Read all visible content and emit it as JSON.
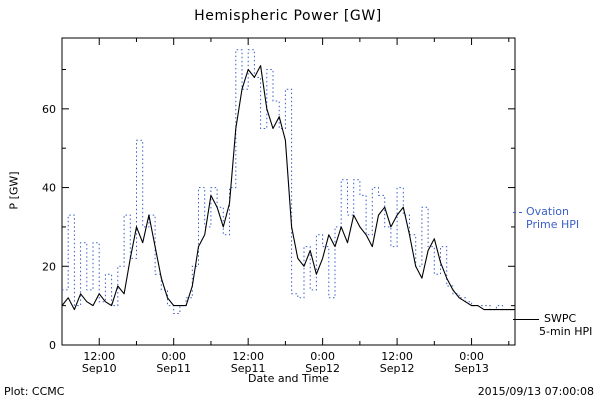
{
  "footer": {
    "left": "Plot: CCMC",
    "right": "2015/09/13 07:00:08"
  },
  "chart_data": {
    "type": "line",
    "title": "Hemispheric Power [GW]",
    "xlabel": "Date and Time",
    "ylabel": "P [GW]",
    "xlim": [
      6,
      79
    ],
    "ylim": [
      0,
      78
    ],
    "x_unit_hours_since": "2015-09-10 00:00",
    "yticks": [
      0,
      20,
      40,
      60
    ],
    "xticks": [
      {
        "value": 12,
        "time": "12:00",
        "date": "Sep10"
      },
      {
        "value": 24,
        "time": "0:00",
        "date": "Sep11"
      },
      {
        "value": 36,
        "time": "12:00",
        "date": "Sep11"
      },
      {
        "value": 48,
        "time": "0:00",
        "date": "Sep12"
      },
      {
        "value": 60,
        "time": "12:00",
        "date": "Sep12"
      },
      {
        "value": 72,
        "time": "0:00",
        "date": "Sep13"
      }
    ],
    "grid": false,
    "legend_position": "outside-right",
    "series": [
      {
        "name": "Ovation Prime HPI",
        "style": "dotted-step",
        "color": "#3a5fc8",
        "x": [
          6,
          7,
          8,
          9,
          10,
          11,
          12,
          13,
          14,
          15,
          16,
          17,
          18,
          19,
          20,
          21,
          22,
          23,
          24,
          25,
          26,
          27,
          28,
          29,
          30,
          31,
          32,
          33,
          34,
          35,
          36,
          37,
          38,
          39,
          40,
          41,
          42,
          43,
          44,
          45,
          46,
          47,
          48,
          49,
          50,
          51,
          52,
          53,
          54,
          55,
          56,
          57,
          58,
          59,
          60,
          61,
          62,
          63,
          64,
          65,
          66,
          67,
          68,
          69,
          70,
          71,
          72,
          73,
          74,
          75,
          76,
          77,
          78,
          79
        ],
        "values": [
          14,
          33,
          10,
          26,
          14,
          26,
          11,
          18,
          10,
          20,
          33,
          22,
          52,
          30,
          33,
          18,
          14,
          10,
          8,
          10,
          12,
          20,
          40,
          30,
          40,
          35,
          28,
          40,
          75,
          65,
          75,
          68,
          55,
          70,
          62,
          55,
          65,
          13,
          12,
          25,
          14,
          28,
          25,
          12,
          30,
          42,
          33,
          42,
          38,
          28,
          40,
          38,
          30,
          25,
          40,
          33,
          28,
          20,
          35,
          25,
          18,
          25,
          15,
          13,
          12,
          11,
          10,
          10,
          10,
          9,
          10,
          9,
          9,
          9
        ]
      },
      {
        "name": "SWPC 5-min HPI",
        "style": "solid",
        "color": "#000000",
        "x": [
          6,
          7,
          8,
          9,
          10,
          11,
          12,
          13,
          14,
          15,
          16,
          17,
          18,
          19,
          20,
          21,
          22,
          23,
          24,
          25,
          26,
          27,
          28,
          29,
          30,
          31,
          32,
          33,
          34,
          35,
          36,
          37,
          38,
          39,
          40,
          41,
          42,
          43,
          44,
          45,
          46,
          47,
          48,
          49,
          50,
          51,
          52,
          53,
          54,
          55,
          56,
          57,
          58,
          59,
          60,
          61,
          62,
          63,
          64,
          65,
          66,
          67,
          68,
          69,
          70,
          71,
          72,
          73,
          74,
          75,
          76,
          77,
          78,
          79
        ],
        "values": [
          10,
          12,
          9,
          13,
          11,
          10,
          13,
          11,
          10,
          15,
          13,
          22,
          30,
          26,
          33,
          25,
          17,
          12,
          10,
          10,
          10,
          15,
          25,
          28,
          38,
          35,
          30,
          36,
          55,
          65,
          70,
          68,
          71,
          60,
          55,
          58,
          52,
          30,
          22,
          20,
          24,
          18,
          22,
          28,
          25,
          30,
          26,
          33,
          30,
          28,
          25,
          33,
          35,
          30,
          33,
          35,
          28,
          20,
          17,
          24,
          27,
          21,
          17,
          14,
          12,
          11,
          10,
          10,
          9,
          9,
          9,
          9,
          9,
          9
        ]
      }
    ],
    "legend": [
      {
        "line1": "Ovation",
        "line2": "Prime HPI",
        "color": "#3a5fc8"
      },
      {
        "line1": "SWPC",
        "line2": "5-min HPI",
        "color": "#000000"
      }
    ]
  }
}
